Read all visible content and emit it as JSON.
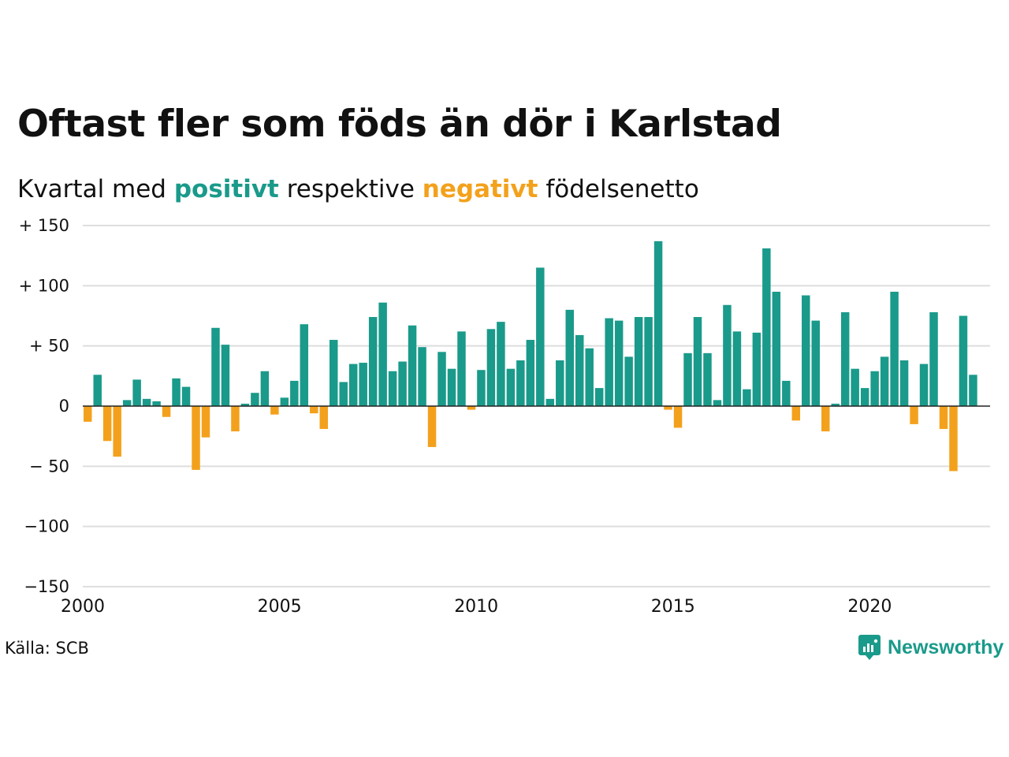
{
  "title": "Oftast fler som föds än dör i Karlstad",
  "subtitle": {
    "before": "Kvartal med ",
    "positive": "positivt",
    "middle": " respektive ",
    "negative": "negativt",
    "after": " födelsenetto"
  },
  "source": "Källa: SCB",
  "brand": "Newsworthy",
  "colors": {
    "positive": "#1a9a8a",
    "negative": "#f3a11c",
    "grid": "#dedede",
    "axis": "#222222"
  },
  "chart_data": {
    "type": "bar",
    "grid": true,
    "ylim": [
      -150,
      150
    ],
    "yticks": [
      {
        "value": 150,
        "label": "+ 150"
      },
      {
        "value": 100,
        "label": "+ 100"
      },
      {
        "value": 50,
        "label": "+  50"
      },
      {
        "value": 0,
        "label": "0"
      },
      {
        "value": -50,
        "label": "− 50"
      },
      {
        "value": -100,
        "label": "−100"
      },
      {
        "value": -150,
        "label": "−150"
      }
    ],
    "xticks": [
      "2000",
      "2005",
      "2010",
      "2015",
      "2020"
    ],
    "first_quarter": "2000 Q1",
    "values": [
      -13,
      26,
      -29,
      -42,
      5,
      22,
      6,
      4,
      -9,
      23,
      16,
      -53,
      -26,
      65,
      51,
      -21,
      2,
      11,
      29,
      -7,
      7,
      21,
      68,
      -6,
      -19,
      55,
      20,
      35,
      36,
      74,
      86,
      29,
      37,
      67,
      49,
      -34,
      45,
      31,
      62,
      -3,
      30,
      64,
      70,
      31,
      38,
      55,
      115,
      6,
      38,
      80,
      59,
      48,
      15,
      73,
      71,
      41,
      74,
      74,
      137,
      -3,
      -18,
      44,
      74,
      44,
      5,
      84,
      62,
      14,
      61,
      131,
      95,
      21,
      -12,
      92,
      71,
      -21,
      2,
      78,
      31,
      15,
      29,
      41,
      95,
      38,
      -15,
      35,
      78,
      -19,
      -54,
      75,
      26
    ]
  }
}
